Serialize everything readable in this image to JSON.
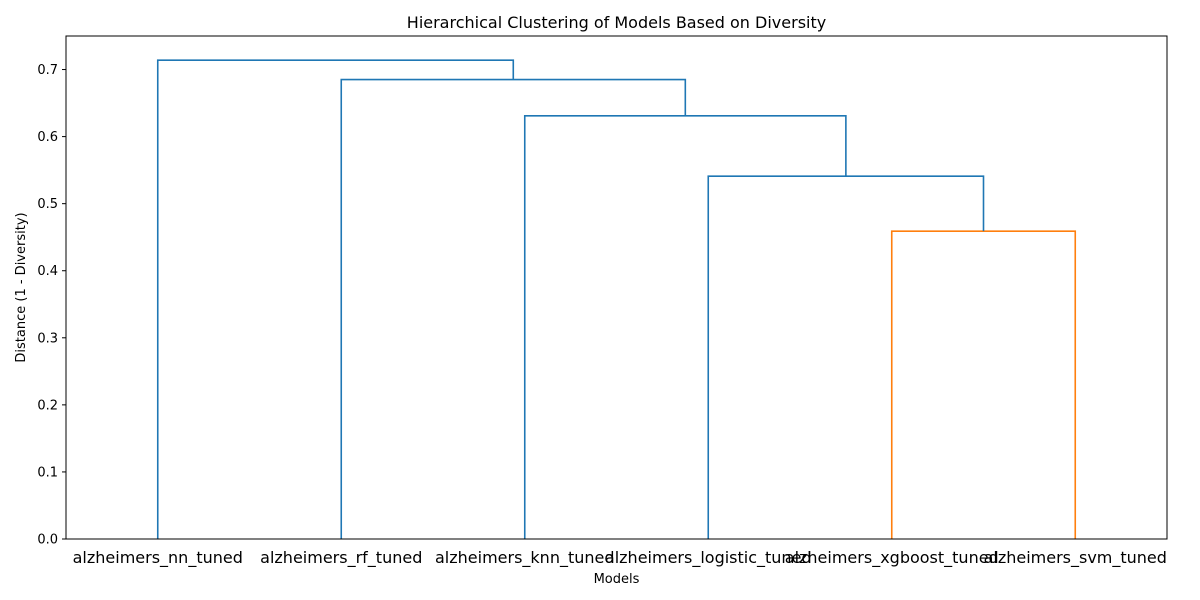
{
  "chart_data": {
    "type": "dendrogram",
    "title": "Hierarchical Clustering of Models Based on Diversity",
    "xlabel": "Models",
    "ylabel": "Distance (1 - Diversity)",
    "ylim": [
      0,
      0.75
    ],
    "yticks": [
      0.0,
      0.1,
      0.2,
      0.3,
      0.4,
      0.5,
      0.6,
      0.7
    ],
    "ytick_labels": [
      "0.0",
      "0.1",
      "0.2",
      "0.3",
      "0.4",
      "0.5",
      "0.6",
      "0.7"
    ],
    "grid": false,
    "leaves": [
      "alzheimers_nn_tuned",
      "alzheimers_rf_tuned",
      "alzheimers_knn_tuned",
      "alzheimers_logistic_tuned",
      "alzheimers_xgboost_tuned",
      "alzheimers_svm_tuned"
    ],
    "merges": [
      {
        "left": "alzheimers_xgboost_tuned",
        "right": "alzheimers_svm_tuned",
        "height": 0.459,
        "color": "#ff7f0e"
      },
      {
        "left": "alzheimers_logistic_tuned",
        "right": "cluster_1",
        "height": 0.541,
        "color": "#1f77b4"
      },
      {
        "left": "alzheimers_knn_tuned",
        "right": "cluster_2",
        "height": 0.631,
        "color": "#1f77b4"
      },
      {
        "left": "alzheimers_rf_tuned",
        "right": "cluster_3",
        "height": 0.685,
        "color": "#1f77b4"
      },
      {
        "left": "alzheimers_nn_tuned",
        "right": "cluster_4",
        "height": 0.714,
        "color": "#1f77b4"
      }
    ]
  }
}
